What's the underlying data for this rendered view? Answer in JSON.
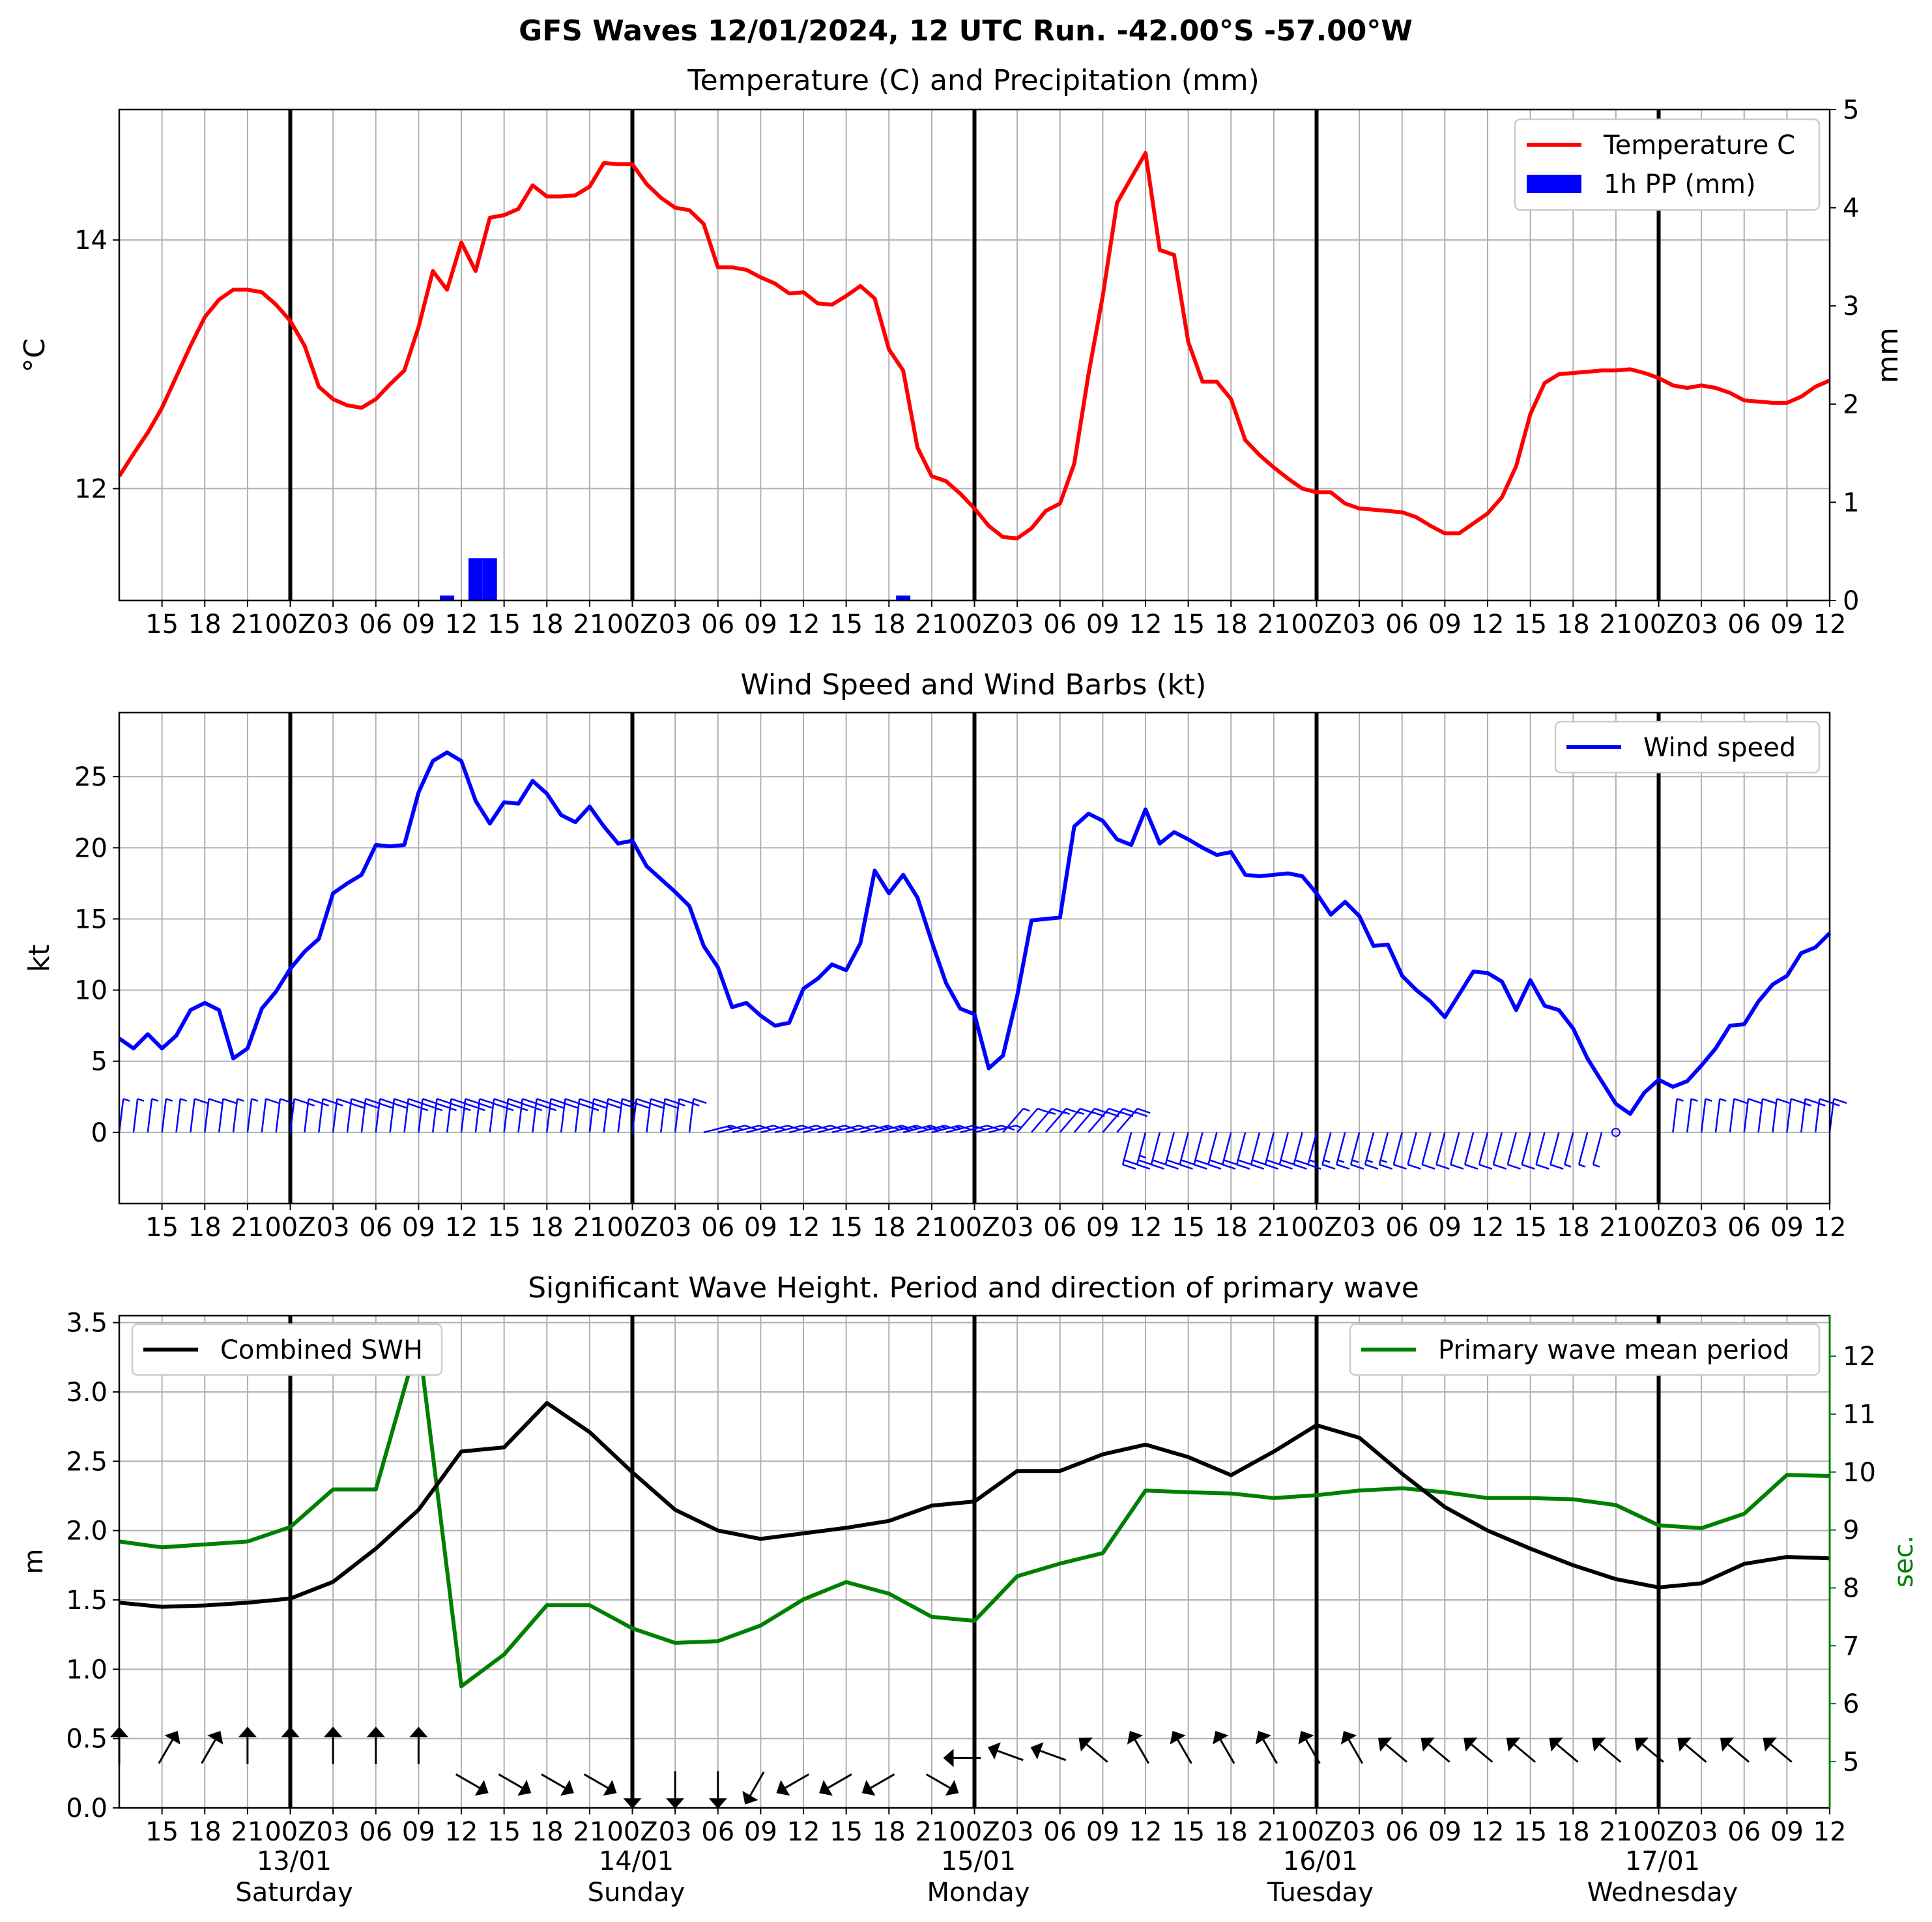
{
  "figure_title": "GFS Waves 12/01/2024, 12 UTC Run. -42.00°S -57.00°W",
  "colors": {
    "temperature": "#ff0000",
    "precip": "#0000ff",
    "wind": "#0000ff",
    "swh": "#000000",
    "period": "#008000",
    "grid": "#b0b0b0",
    "day_line": "#000000"
  },
  "x_tick_labels": [
    "15",
    "18",
    "21",
    "00Z",
    "03",
    "06",
    "09",
    "12",
    "15",
    "18",
    "21",
    "00Z",
    "03",
    "06",
    "09",
    "12",
    "15",
    "18",
    "21",
    "00Z",
    "03",
    "06",
    "09",
    "12",
    "15",
    "18",
    "21",
    "00Z",
    "03",
    "06",
    "09",
    "12",
    "15",
    "18",
    "21",
    "00Z",
    "03",
    "06",
    "09",
    "12"
  ],
  "date_labels": [
    {
      "date": "13/01",
      "day": "Saturday"
    },
    {
      "date": "14/01",
      "day": "Sunday"
    },
    {
      "date": "15/01",
      "day": "Monday"
    },
    {
      "date": "16/01",
      "day": "Tuesday"
    },
    {
      "date": "17/01",
      "day": "Wednesday"
    }
  ],
  "chart_data": [
    {
      "type": "line",
      "title": "Temperature (C) and Precipitation (mm)",
      "ylabel": "°C",
      "y2label": "mm",
      "x_hours_from_run": "0 to 120, step 1 (hourly)",
      "ylim": [
        11.1,
        15.05
      ],
      "yticks": [
        12,
        14
      ],
      "y2lim": [
        0,
        5
      ],
      "y2ticks": [
        0,
        1,
        2,
        3,
        4,
        5
      ],
      "legend": "top-right",
      "grid": true,
      "series": [
        {
          "name": "Temperature C",
          "axis": "left",
          "values": [
            12.1,
            12.28,
            12.45,
            12.65,
            12.9,
            13.15,
            13.38,
            13.52,
            13.6,
            13.6,
            13.58,
            13.48,
            13.35,
            13.15,
            12.82,
            12.72,
            12.67,
            12.65,
            12.72,
            12.84,
            12.95,
            13.3,
            13.75,
            13.6,
            13.98,
            13.75,
            14.18,
            14.2,
            14.25,
            14.44,
            14.35,
            14.35,
            14.36,
            14.43,
            14.62,
            14.61,
            14.61,
            14.45,
            14.34,
            14.26,
            14.24,
            14.13,
            13.78,
            13.78,
            13.76,
            13.7,
            13.65,
            13.57,
            13.58,
            13.49,
            13.48,
            13.55,
            13.63,
            13.53,
            13.12,
            12.95,
            12.33,
            12.1,
            12.06,
            11.96,
            11.84,
            11.7,
            11.61,
            11.6,
            11.68,
            11.82,
            11.88,
            12.2,
            12.92,
            13.55,
            14.3,
            14.5,
            14.7,
            13.92,
            13.88,
            13.18,
            12.86,
            12.86,
            12.72,
            12.39,
            12.27,
            12.17,
            12.08,
            12.0,
            11.97,
            11.97,
            11.88,
            11.84,
            11.83,
            11.82,
            11.81,
            11.77,
            11.7,
            11.64,
            11.64,
            11.72,
            11.8,
            11.93,
            12.18,
            12.6,
            12.85,
            12.92,
            12.93,
            12.94,
            12.95,
            12.95,
            12.96,
            12.93,
            12.89,
            12.83,
            12.81,
            12.83,
            12.81,
            12.77,
            12.71,
            12.7,
            12.69,
            12.69,
            12.74,
            12.82,
            12.87
          ]
        },
        {
          "name": "1h PP (mm)",
          "axis": "right",
          "type": "bar",
          "points": [
            {
              "hour": 23,
              "value": 0.05
            },
            {
              "hour": 25,
              "value": 0.43
            },
            {
              "hour": 26,
              "value": 0.43
            },
            {
              "hour": 55,
              "value": 0.05
            }
          ]
        }
      ]
    },
    {
      "type": "line",
      "title": "Wind Speed and Wind Barbs (kt)",
      "ylabel": "kt",
      "ylim": [
        -5,
        29.5
      ],
      "yticks": [
        0,
        5,
        10,
        15,
        20,
        25
      ],
      "legend": "top-right",
      "grid": true,
      "series": [
        {
          "name": "Wind speed",
          "values": [
            6.6,
            5.9,
            6.9,
            5.9,
            6.8,
            8.6,
            9.1,
            8.6,
            5.2,
            5.9,
            8.7,
            9.9,
            11.5,
            12.7,
            13.6,
            16.8,
            17.5,
            18.1,
            20.2,
            20.1,
            20.2,
            23.9,
            26.1,
            26.7,
            26.1,
            23.3,
            21.7,
            23.2,
            23.1,
            24.7,
            23.8,
            22.3,
            21.8,
            22.9,
            21.5,
            20.3,
            20.5,
            18.7,
            17.8,
            16.9,
            15.9,
            13.1,
            11.6,
            8.8,
            9.1,
            8.2,
            7.5,
            7.7,
            10.1,
            10.8,
            11.8,
            11.4,
            13.3,
            18.4,
            16.8,
            18.1,
            16.5,
            13.4,
            10.5,
            8.7,
            8.3,
            4.5,
            5.4,
            9.6,
            14.9,
            15.0,
            15.1,
            21.5,
            22.4,
            21.9,
            20.6,
            20.2,
            22.7,
            20.3,
            21.1,
            20.6,
            20.0,
            19.5,
            19.7,
            18.1,
            18.0,
            18.1,
            18.2,
            18.0,
            16.8,
            15.3,
            16.2,
            15.2,
            13.1,
            13.2,
            11.0,
            10.0,
            9.2,
            8.1,
            9.7,
            11.3,
            11.2,
            10.6,
            8.6,
            10.7,
            8.9,
            8.6,
            7.3,
            5.2,
            3.6,
            2.0,
            1.3,
            2.8,
            3.7,
            3.2,
            3.6,
            4.7,
            5.9,
            7.5,
            7.6,
            9.2,
            10.4,
            11.0,
            12.6,
            13.0,
            14.0
          ]
        }
      ],
      "barbs": "wind direction barbs drawn along y=0 for each hour"
    },
    {
      "type": "line",
      "title": "Significant Wave Height. Period and direction of primary wave",
      "ylabel": "m",
      "y2label": "sec.",
      "x_hours_from_run": "0 to 120, step 3",
      "ylim": [
        0,
        3.55
      ],
      "yticks": [
        0.0,
        0.5,
        1.0,
        1.5,
        2.0,
        2.5,
        3.0,
        3.5
      ],
      "y2lim": [
        4.2,
        12.7
      ],
      "y2ticks": [
        5,
        6,
        7,
        8,
        9,
        10,
        11,
        12
      ],
      "grid": true,
      "series": [
        {
          "name": "Combined SWH",
          "axis": "left",
          "legend": "top-left",
          "values": [
            1.48,
            1.45,
            1.46,
            1.48,
            1.51,
            1.63,
            1.87,
            2.15,
            2.57,
            2.6,
            2.92,
            2.71,
            2.42,
            2.15,
            2.0,
            1.94,
            1.98,
            2.02,
            2.07,
            2.18,
            2.21,
            2.43,
            2.43,
            2.55,
            2.62,
            2.53,
            2.4,
            2.57,
            2.76,
            2.67,
            2.41,
            2.17,
            2.0,
            1.87,
            1.75,
            1.65,
            1.59,
            1.62,
            1.76,
            1.81,
            1.8
          ]
        },
        {
          "name": "Primary wave mean period",
          "axis": "right",
          "legend": "top-right",
          "values": [
            8.8,
            8.7,
            8.75,
            8.8,
            9.05,
            9.7,
            9.7,
            12.3,
            6.3,
            6.85,
            7.7,
            7.7,
            7.3,
            7.05,
            7.08,
            7.35,
            7.8,
            8.1,
            7.9,
            7.5,
            7.43,
            8.2,
            8.42,
            8.6,
            9.68,
            9.65,
            9.63,
            9.55,
            9.6,
            9.68,
            9.72,
            9.65,
            9.55,
            9.55,
            9.53,
            9.43,
            9.08,
            9.03,
            9.28,
            9.95,
            9.93
          ]
        }
      ],
      "direction_arrows_deg": [
        0,
        30,
        30,
        0,
        0,
        0,
        0,
        0,
        120,
        120,
        120,
        120,
        180,
        180,
        180,
        210,
        240,
        240,
        240,
        120,
        270,
        290,
        290,
        310,
        330,
        330,
        330,
        330,
        330,
        330,
        310,
        310,
        310,
        310,
        310,
        310,
        310,
        310,
        310,
        310
      ]
    }
  ]
}
